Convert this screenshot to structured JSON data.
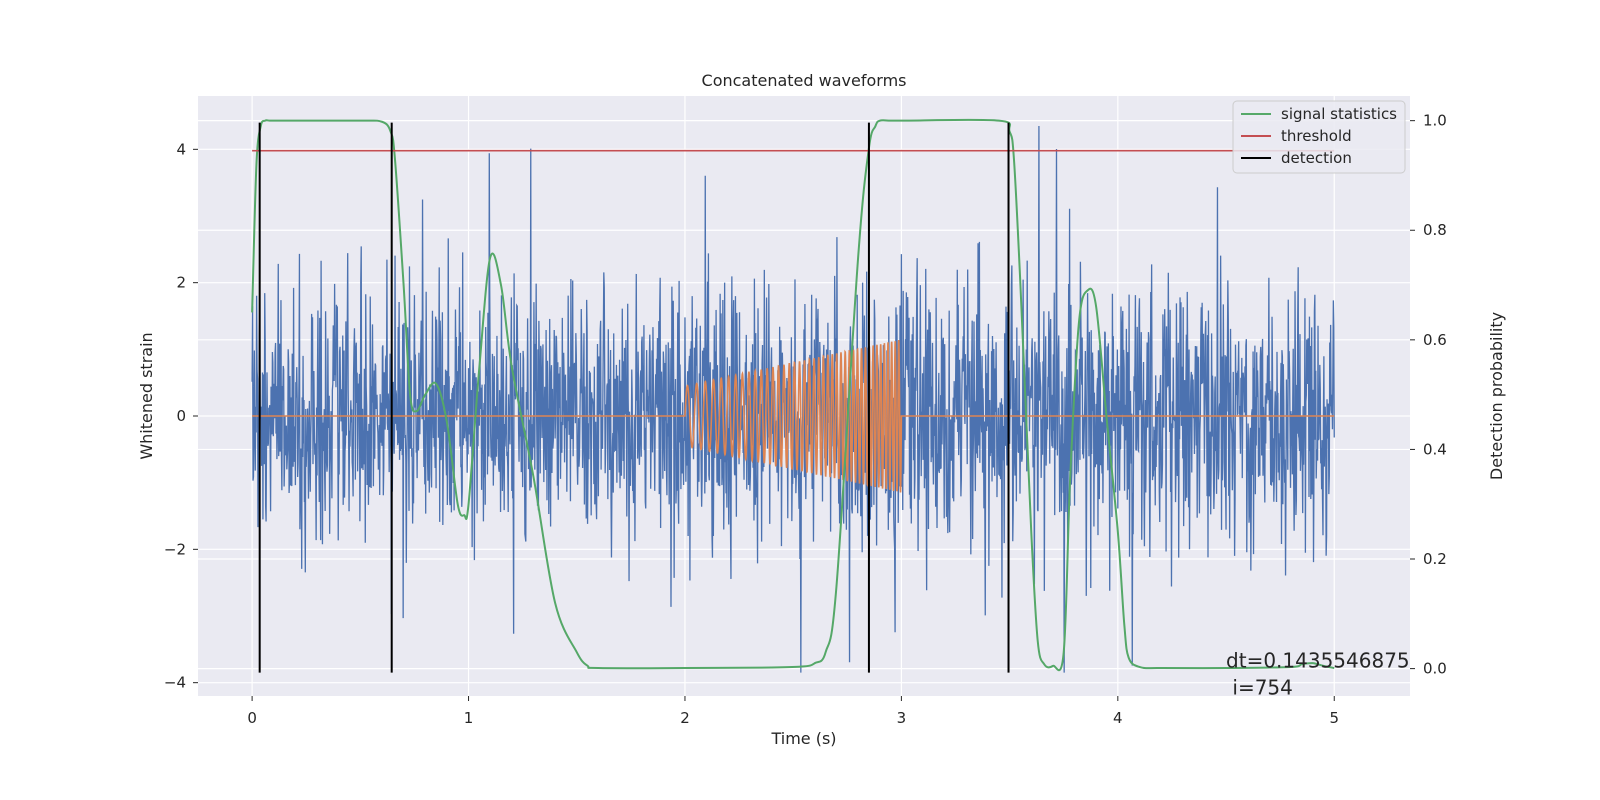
{
  "chart_data": {
    "type": "line",
    "title": "Concatenated waveforms",
    "xlabel": "Time (s)",
    "ylabel": "Whitened strain",
    "ylabel_right": "Detection probability",
    "xlim": [
      -0.25,
      5.35
    ],
    "ylim": [
      -4.2,
      4.8
    ],
    "ylim_right": [
      -0.05,
      1.045
    ],
    "x_ticks": [
      0,
      1,
      2,
      3,
      4,
      5
    ],
    "x_tick_labels": [
      "0",
      "1",
      "2",
      "3",
      "4",
      "5"
    ],
    "y_ticks": [
      -4,
      -2,
      0,
      2,
      4
    ],
    "y_tick_labels": [
      "−4",
      "−2",
      "0",
      "2",
      "4"
    ],
    "y_ticks_right": [
      0.0,
      0.2,
      0.4,
      0.6,
      0.8,
      1.0
    ],
    "y_tick_labels_right": [
      "0.0",
      "0.2",
      "0.4",
      "0.6",
      "0.8",
      "1.0"
    ],
    "grid": true,
    "legend_position": "top-right",
    "legend": [
      {
        "label": "signal statistics",
        "color": "#55a868"
      },
      {
        "label": "threshold",
        "color": "#c44e52"
      },
      {
        "label": "detection",
        "color": "#000000"
      }
    ],
    "series": [
      {
        "name": "",
        "kind": "noise",
        "axis": "left",
        "color": "#4c72b0",
        "x_range": [
          0,
          5
        ],
        "amplitude": 1.1
      },
      {
        "name": "",
        "kind": "chirp",
        "axis": "left",
        "color": "#dd8452",
        "x_range": [
          2,
          3
        ],
        "amplitude_range": [
          0.45,
          1.15
        ]
      },
      {
        "name": "signal statistics",
        "axis": "right",
        "color": "#55a868",
        "x": [
          0.0,
          0.02,
          0.04,
          0.06,
          0.08,
          0.1,
          0.2,
          0.5,
          0.6,
          0.64,
          0.66,
          0.7,
          0.73,
          0.76,
          0.8,
          0.85,
          0.9,
          0.95,
          0.98,
          1.0,
          1.05,
          1.1,
          1.15,
          1.2,
          1.3,
          1.4,
          1.5,
          1.55,
          1.6,
          2.0,
          2.4,
          2.55,
          2.6,
          2.65,
          2.7,
          2.8,
          2.85,
          2.88,
          2.9,
          2.95,
          3.0,
          3.45,
          3.5,
          3.52,
          3.55,
          3.6,
          3.63,
          3.66,
          3.7,
          3.75,
          3.78,
          3.82,
          3.86,
          3.9,
          3.95,
          4.0,
          4.03,
          4.05,
          4.1,
          4.2,
          4.5,
          4.8,
          4.85,
          4.9,
          4.95,
          5.0
        ],
        "y": [
          0.65,
          0.92,
          0.99,
          1.0,
          1.0,
          1.0,
          1.0,
          1.0,
          0.998,
          0.98,
          0.93,
          0.7,
          0.5,
          0.47,
          0.5,
          0.52,
          0.45,
          0.3,
          0.28,
          0.3,
          0.55,
          0.75,
          0.7,
          0.55,
          0.35,
          0.12,
          0.03,
          0.005,
          0.001,
          0.001,
          0.002,
          0.004,
          0.01,
          0.03,
          0.15,
          0.75,
          0.95,
          0.99,
          1.0,
          1.0,
          1.0,
          1.0,
          0.98,
          0.93,
          0.7,
          0.25,
          0.05,
          0.008,
          0.005,
          0.03,
          0.35,
          0.63,
          0.69,
          0.66,
          0.45,
          0.25,
          0.08,
          0.02,
          0.003,
          0.001,
          0.001,
          0.003,
          0.008,
          0.01,
          0.005,
          0.001
        ]
      },
      {
        "name": "threshold",
        "axis": "left",
        "color": "#c44e52",
        "x": [
          0,
          5
        ],
        "y": [
          3.98,
          3.98
        ]
      },
      {
        "name": "detection",
        "axis": "left",
        "color": "#000000",
        "vlines": [
          0.035,
          0.645,
          2.85,
          3.495
        ],
        "y_range": [
          -3.85,
          4.4
        ]
      }
    ],
    "annotation": {
      "lines": [
        "dt=0.1435546875",
        " i=754"
      ],
      "x": 4.5,
      "y": -3.55
    }
  }
}
